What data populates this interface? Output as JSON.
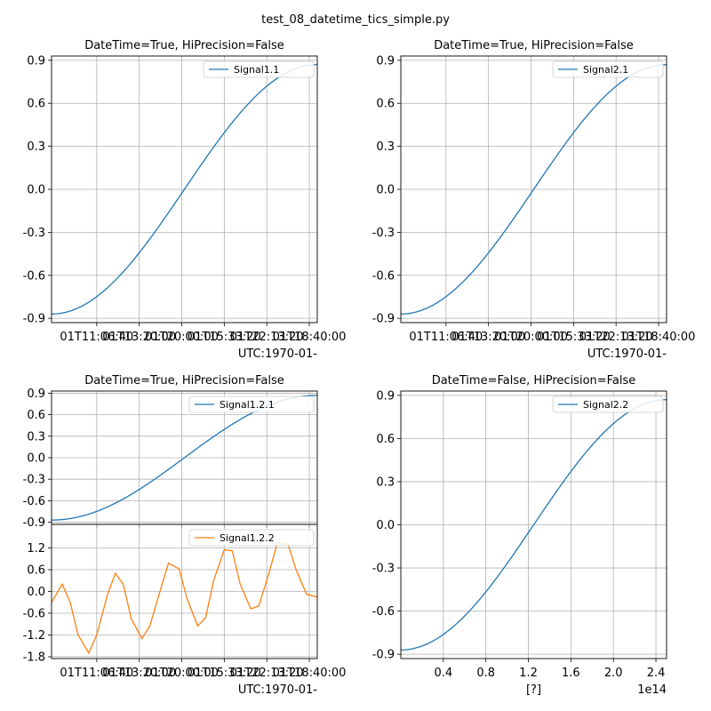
{
  "figure": {
    "suptitle": "test_08_datetime_tics_simple.py"
  },
  "chart_data": [
    {
      "id": "ax1",
      "type": "line",
      "title": "DateTime=True, HiPrecision=False",
      "xlabel": "UTC:1970-01-",
      "ylabel": "",
      "xlim": [
        0,
        1.0
      ],
      "ylim": [
        -0.93,
        0.93
      ],
      "xtick_labels": [
        "01T11:06:40",
        "01T13:20:00",
        "01T20:00:00",
        "01T15:33:20",
        "01T22:13:20",
        "01T18:40:00"
      ],
      "xtick_positions": [
        0.17,
        0.33,
        0.49,
        0.65,
        0.81,
        0.97
      ],
      "yticks": [
        -0.9,
        -0.6,
        -0.3,
        0.0,
        0.3,
        0.6,
        0.9
      ],
      "ytick_labels": [
        "-0.9",
        "-0.6",
        "-0.3",
        "0.0",
        "0.3",
        "0.6",
        "0.9"
      ],
      "grid": true,
      "legend": "top-right",
      "series": [
        {
          "name": "Signal1.1",
          "color": "#1f77b4",
          "function": "sine",
          "amplitude": 0.87,
          "x": [
            0,
            1.0
          ]
        }
      ]
    },
    {
      "id": "ax2",
      "type": "line",
      "title": "DateTime=True, HiPrecision=False",
      "xlabel": "UTC:1970-01-",
      "ylabel": "",
      "xlim": [
        0,
        1.0
      ],
      "ylim": [
        -0.93,
        0.93
      ],
      "xtick_labels": [
        "01T11:06:40",
        "01T13:20:00",
        "01T20:00:00",
        "01T15:33:20",
        "01T22:13:20",
        "01T18:40:00"
      ],
      "xtick_positions": [
        0.17,
        0.33,
        0.49,
        0.65,
        0.81,
        0.97
      ],
      "yticks": [
        -0.9,
        -0.6,
        -0.3,
        0.0,
        0.3,
        0.6,
        0.9
      ],
      "ytick_labels": [
        "-0.9",
        "-0.6",
        "-0.3",
        "0.0",
        "0.3",
        "0.6",
        "0.9"
      ],
      "grid": true,
      "legend": "top-right",
      "series": [
        {
          "name": "Signal2.1",
          "color": "#1f77b4",
          "function": "sine",
          "amplitude": 0.87,
          "x": [
            0,
            1.0
          ]
        }
      ]
    },
    {
      "id": "ax3a",
      "type": "line",
      "title": "DateTime=True, HiPrecision=False",
      "xlabel": "",
      "ylabel": "",
      "xlim": [
        0,
        1.0
      ],
      "ylim": [
        -0.93,
        0.93
      ],
      "xtick_labels": [],
      "xtick_positions": [
        0.17,
        0.33,
        0.49,
        0.65,
        0.81,
        0.97
      ],
      "yticks": [
        -0.9,
        -0.6,
        -0.3,
        0.0,
        0.3,
        0.6,
        0.9
      ],
      "ytick_labels": [
        "-0.9",
        "-0.6",
        "-0.3",
        "0.0",
        "0.3",
        "0.6",
        "0.9"
      ],
      "grid": true,
      "legend": "top-right",
      "series": [
        {
          "name": "Signal1.2.1",
          "color": "#1f77b4",
          "function": "sine",
          "amplitude": 0.87,
          "x": [
            0,
            1.0
          ]
        }
      ]
    },
    {
      "id": "ax3b",
      "type": "line",
      "title": "",
      "xlabel": "UTC:1970-01-",
      "ylabel": "",
      "xlim": [
        0,
        1.0
      ],
      "ylim": [
        -1.85,
        1.85
      ],
      "xtick_labels": [
        "01T11:06:40",
        "01T13:20:00",
        "01T20:00:00",
        "01T15:33:20",
        "01T22:13:20",
        "01T18:40:00"
      ],
      "xtick_positions": [
        0.17,
        0.33,
        0.49,
        0.65,
        0.81,
        0.97
      ],
      "yticks": [
        -1.8,
        -1.2,
        -0.6,
        0.0,
        0.6,
        1.2
      ],
      "ytick_labels": [
        "-1.8",
        "-1.2",
        "-0.6",
        "0.0",
        "0.6",
        "1.2"
      ],
      "grid": true,
      "legend": "top-right",
      "series": [
        {
          "name": "Signal1.2.2",
          "color": "#ff7f0e",
          "function": "points",
          "x": [
            0.0,
            0.04,
            0.07,
            0.1,
            0.14,
            0.17,
            0.21,
            0.24,
            0.27,
            0.3,
            0.34,
            0.37,
            0.41,
            0.44,
            0.48,
            0.51,
            0.55,
            0.58,
            0.61,
            0.65,
            0.68,
            0.71,
            0.75,
            0.78,
            0.82,
            0.85,
            0.89,
            0.92,
            0.96,
            1.0
          ],
          "y": [
            -0.3,
            0.2,
            -0.3,
            -1.2,
            -1.7,
            -1.2,
            -0.1,
            0.5,
            0.2,
            -0.75,
            -1.3,
            -0.95,
            0.05,
            0.78,
            0.62,
            -0.2,
            -0.95,
            -0.72,
            0.3,
            1.15,
            1.12,
            0.2,
            -0.48,
            -0.4,
            0.55,
            1.35,
            1.3,
            0.6,
            -0.08,
            -0.15
          ]
        }
      ]
    },
    {
      "id": "ax4",
      "type": "line",
      "title": "DateTime=False, HiPrecision=False",
      "xlabel": "[?]",
      "x_offset_text": "1e14",
      "ylabel": "",
      "xlim": [
        0,
        2.5
      ],
      "ylim": [
        -0.93,
        0.93
      ],
      "xticks": [
        0.4,
        0.8,
        1.2,
        1.6,
        2.0,
        2.4
      ],
      "xtick_labels": [
        "0.4",
        "0.8",
        "1.2",
        "1.6",
        "2.0",
        "2.4"
      ],
      "yticks": [
        -0.9,
        -0.6,
        -0.3,
        0.0,
        0.3,
        0.6,
        0.9
      ],
      "ytick_labels": [
        "-0.9",
        "-0.6",
        "-0.3",
        "0.0",
        "0.3",
        "0.6",
        "0.9"
      ],
      "grid": true,
      "legend": "top-right",
      "series": [
        {
          "name": "Signal2.2",
          "color": "#1f77b4",
          "function": "sine",
          "amplitude": 0.87,
          "x": [
            0,
            2.5
          ]
        }
      ]
    }
  ]
}
